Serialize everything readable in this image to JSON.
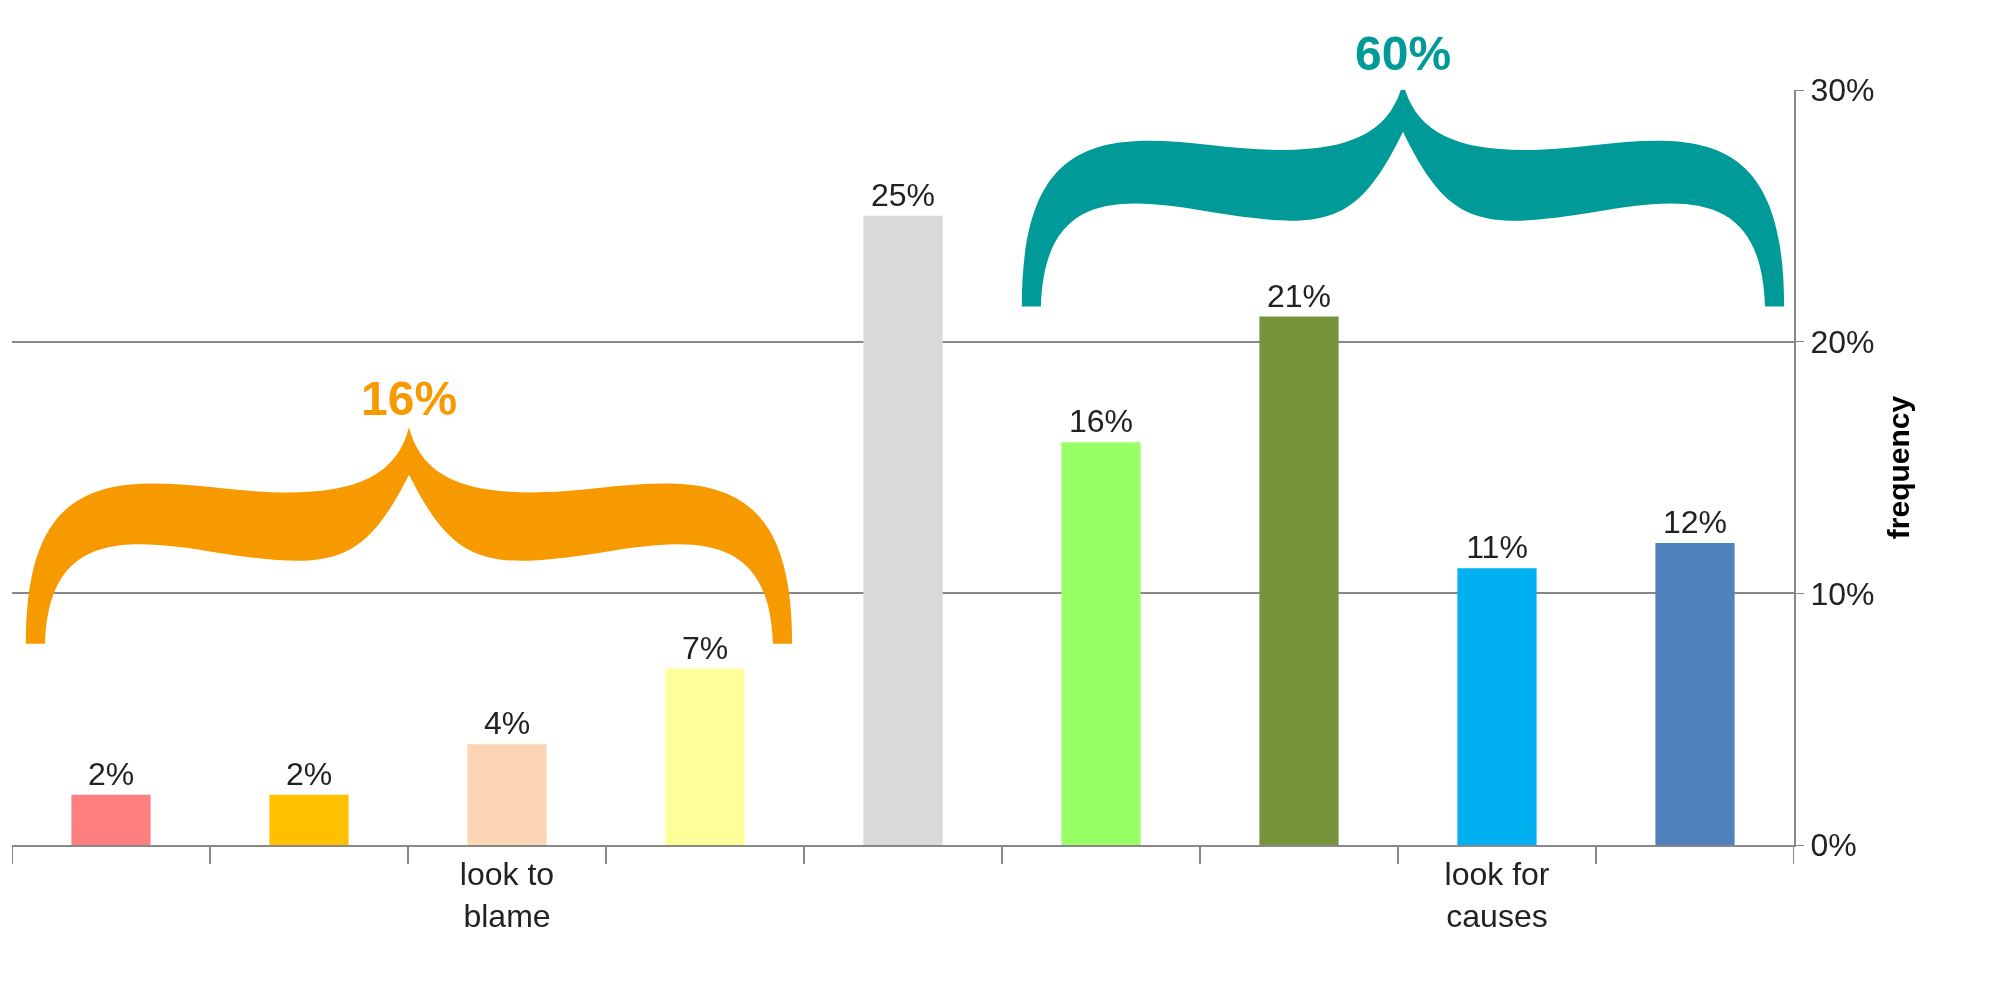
{
  "chart_data": {
    "type": "bar",
    "categories": [
      null,
      null,
      "look to blame",
      null,
      null,
      null,
      null,
      "look for causes",
      null
    ],
    "values": [
      2,
      2,
      4,
      7,
      25,
      16,
      21,
      11,
      12
    ],
    "value_labels": [
      "2%",
      "2%",
      "4%",
      "7%",
      "25%",
      "16%",
      "21%",
      "11%",
      "12%"
    ],
    "colors": [
      "#ff7f7f",
      "#ffc000",
      "#fcd5b4",
      "#ffff99",
      "#d9d9d9",
      "#99ff66",
      "#77933c",
      "#00b0f0",
      "#4f81bd"
    ],
    "ylabel": "frequency",
    "ylim": [
      0,
      30
    ],
    "yticks": [
      {
        "value": 0,
        "label": "0%"
      },
      {
        "value": 10,
        "label": "10%"
      },
      {
        "value": 20,
        "label": "20%"
      },
      {
        "value": 30,
        "label": "30%"
      }
    ],
    "grid": "y",
    "annotations": [
      "16%",
      "60%"
    ]
  }
}
